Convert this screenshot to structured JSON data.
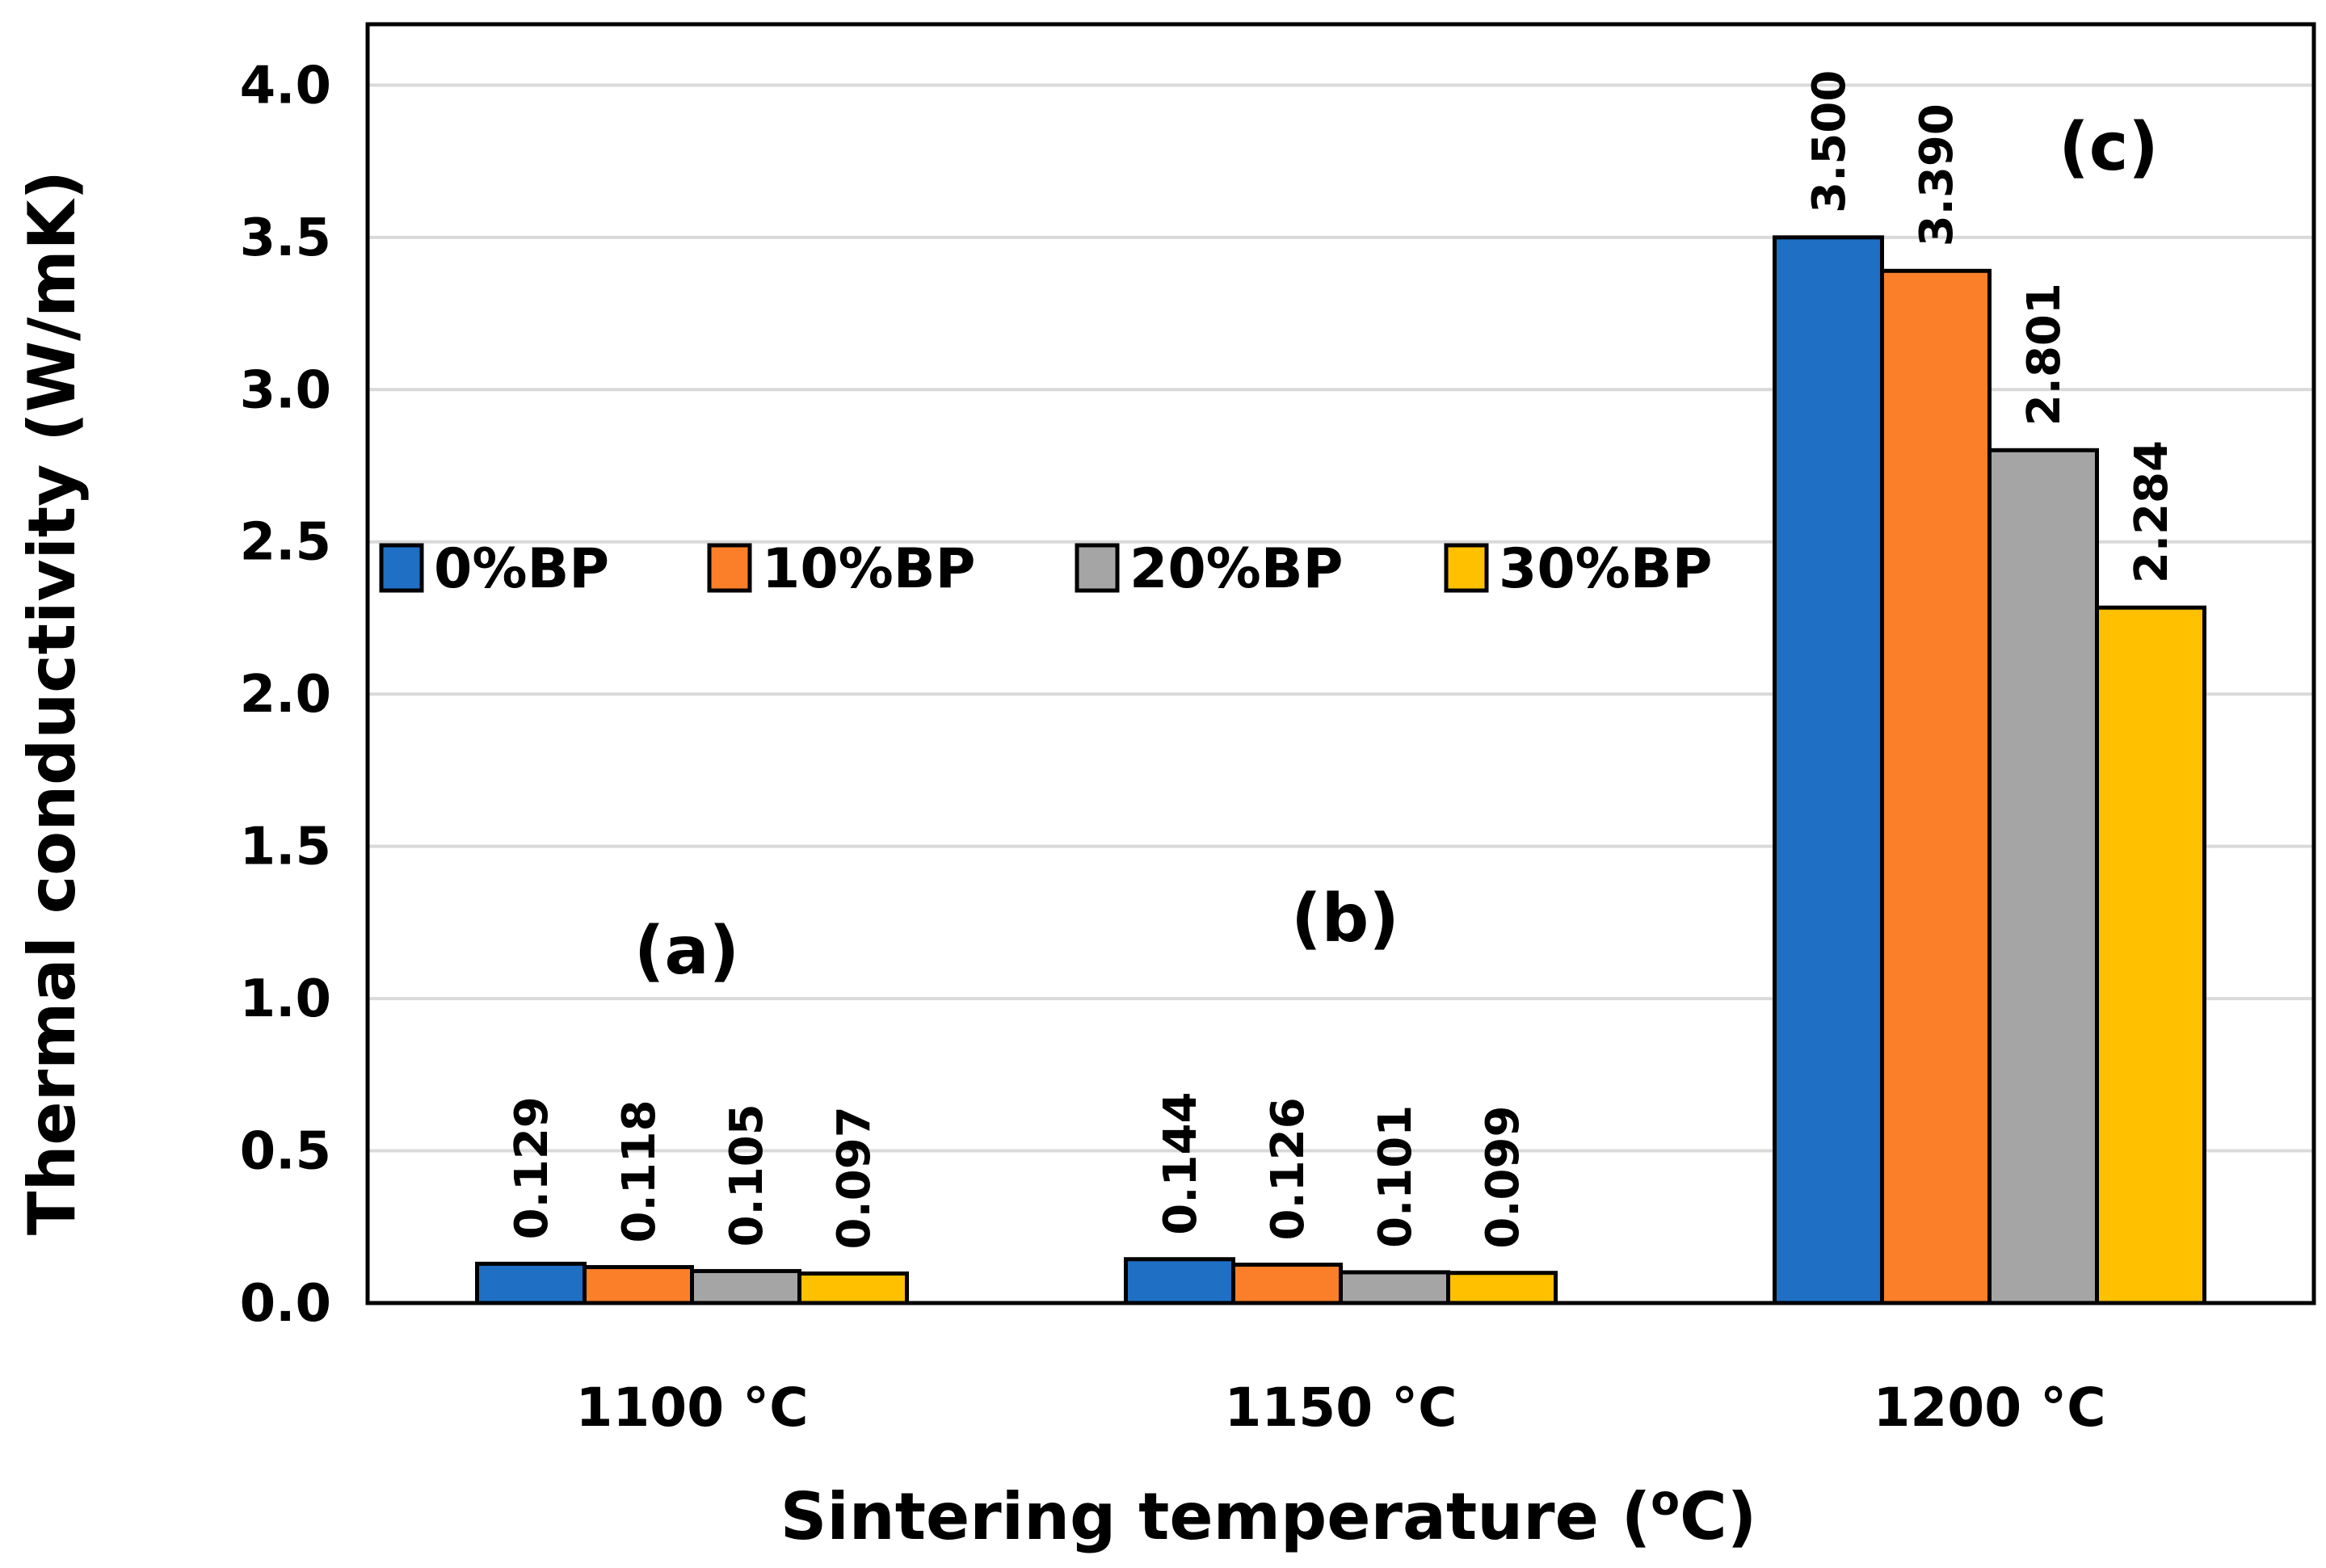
{
  "chart_data": {
    "type": "bar",
    "categories": [
      "1100 °C",
      "1150 °C",
      "1200 °C"
    ],
    "series": [
      {
        "name": "0%BP",
        "color": "#1F6FC5",
        "values": [
          0.129,
          0.144,
          3.5
        ],
        "labels": [
          "0.129",
          "0.144",
          "3.500"
        ]
      },
      {
        "name": "10%BP",
        "color": "#FB7F28",
        "values": [
          0.118,
          0.126,
          3.39
        ],
        "labels": [
          "0.118",
          "0.126",
          "3.390"
        ]
      },
      {
        "name": "20%BP",
        "color": "#A5A5A5",
        "values": [
          0.105,
          0.101,
          2.801
        ],
        "labels": [
          "0.105",
          "0.101",
          "2.801"
        ]
      },
      {
        "name": "30%BP",
        "color": "#FFC000",
        "values": [
          0.097,
          0.099,
          2.284
        ],
        "labels": [
          "0.097",
          "0.099",
          "2.284"
        ]
      }
    ],
    "ylim": [
      0.0,
      4.2
    ],
    "yticks": [
      "0.0",
      "0.5",
      "1.0",
      "1.5",
      "2.0",
      "2.5",
      "3.0",
      "3.5",
      "4.0"
    ],
    "ylabel": "Thermal conductivity (W/mK)",
    "xlabel": {
      "prefix": "Sintering temperature (",
      "sup": "o",
      "suffix": "C)"
    },
    "panel_labels": [
      "(a)",
      "(b)",
      "(c)"
    ],
    "grid": true,
    "legend_position": "middle-left"
  }
}
